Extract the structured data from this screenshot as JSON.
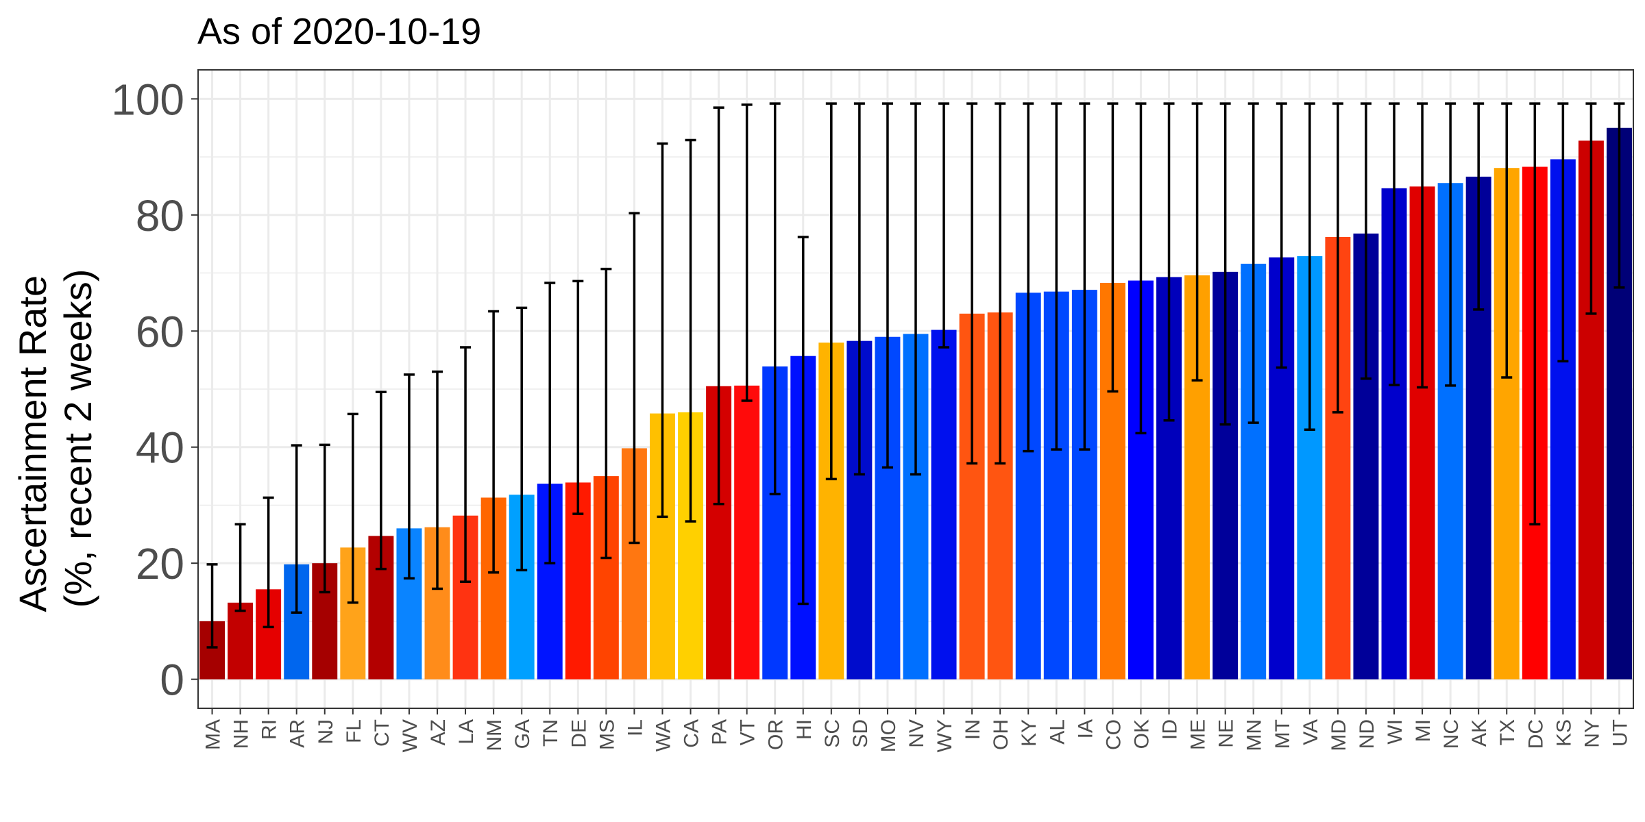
{
  "chart_data": {
    "type": "bar",
    "title": "As of 2020-10-19",
    "ylabel_lines": [
      "Ascertainment Rate",
      "(%, recent 2 weeks)"
    ],
    "xlabel": "",
    "ylim": [
      -5,
      105
    ],
    "yticks": [
      0,
      20,
      40,
      60,
      80,
      100
    ],
    "grid": true,
    "categories": [
      "MA",
      "NH",
      "RI",
      "AR",
      "NJ",
      "FL",
      "CT",
      "WV",
      "AZ",
      "LA",
      "NM",
      "GA",
      "TN",
      "DE",
      "MS",
      "IL",
      "WA",
      "CA",
      "PA",
      "VT",
      "OR",
      "HI",
      "SC",
      "SD",
      "MO",
      "NV",
      "WY",
      "IN",
      "OH",
      "KY",
      "AL",
      "IA",
      "CO",
      "OK",
      "ID",
      "ME",
      "NE",
      "MN",
      "MT",
      "VA",
      "MD",
      "ND",
      "WI",
      "MI",
      "NC",
      "AK",
      "TX",
      "DC",
      "KS",
      "NY",
      "UT"
    ],
    "values": [
      10,
      13.2,
      15.5,
      19.8,
      20,
      22.7,
      24.7,
      26,
      26.2,
      28.2,
      31.3,
      31.8,
      33.7,
      33.9,
      35,
      39.8,
      45.8,
      46,
      50.5,
      50.6,
      53.9,
      55.7,
      58,
      58.3,
      59,
      59.5,
      60.2,
      63,
      63.2,
      66.6,
      66.8,
      67.1,
      68.3,
      68.7,
      69.3,
      69.6,
      70.2,
      71.6,
      72.7,
      72.9,
      76.2,
      76.8,
      84.6,
      84.9,
      85.5,
      86.6,
      88.1,
      88.3,
      89.6,
      92.8,
      95
    ],
    "error_low": [
      5.5,
      11.8,
      9,
      11.5,
      15,
      13.2,
      19,
      17.4,
      15.6,
      16.8,
      18.4,
      18.8,
      20,
      28.5,
      20.9,
      23.5,
      28,
      27.2,
      30.2,
      48,
      31.9,
      13,
      34.5,
      35.3,
      36.5,
      35.3,
      57.2,
      37.2,
      37.2,
      39.3,
      39.6,
      39.6,
      49.6,
      42.4,
      44.6,
      51.5,
      43.9,
      44.2,
      53.7,
      43,
      46,
      51.8,
      50.7,
      50.3,
      50.6,
      63.7,
      52,
      26.7,
      54.8,
      63,
      67.5
    ],
    "error_high": [
      19.8,
      26.7,
      31.3,
      40.3,
      40.4,
      45.7,
      49.5,
      52.5,
      53,
      57.2,
      63.4,
      64,
      68.3,
      68.6,
      70.7,
      80.3,
      92.3,
      92.9,
      98.5,
      99,
      99.2,
      76.2,
      99.2,
      99.2,
      99.2,
      99.2,
      99.2,
      99.2,
      99.2,
      99.2,
      99.2,
      99.2,
      99.2,
      99.2,
      99.2,
      99.2,
      99.2,
      99.2,
      99.2,
      99.2,
      99.2,
      99.2,
      99.2,
      99.2,
      99.2,
      99.2,
      99.2,
      99.2,
      99.2,
      99.2,
      99.2
    ],
    "colors": [
      "#a50000",
      "#c20000",
      "#e50000",
      "#0066ee",
      "#a50000",
      "#ffa31a",
      "#b30000",
      "#0a84ff",
      "#ff8c1a",
      "#ff3311",
      "#ff6600",
      "#00a0ff",
      "#0014ff",
      "#ff1a00",
      "#ff4400",
      "#ff7711",
      "#ffc000",
      "#ffd000",
      "#d40000",
      "#ff0a0a",
      "#0038ff",
      "#0010ff",
      "#ffb300",
      "#000ccc",
      "#0048ff",
      "#0070ff",
      "#0010ee",
      "#ff5511",
      "#ff5511",
      "#0048ff",
      "#0048ff",
      "#0048ff",
      "#ff7700",
      "#0000ff",
      "#0000bb",
      "#ffa000",
      "#00009a",
      "#0070ff",
      "#0000cc",
      "#0098ff",
      "#ff4411",
      "#000099",
      "#0000cc",
      "#e00000",
      "#0070ff",
      "#000099",
      "#ffa500",
      "#ff0000",
      "#0010ee",
      "#cc0000",
      "#000077"
    ]
  }
}
